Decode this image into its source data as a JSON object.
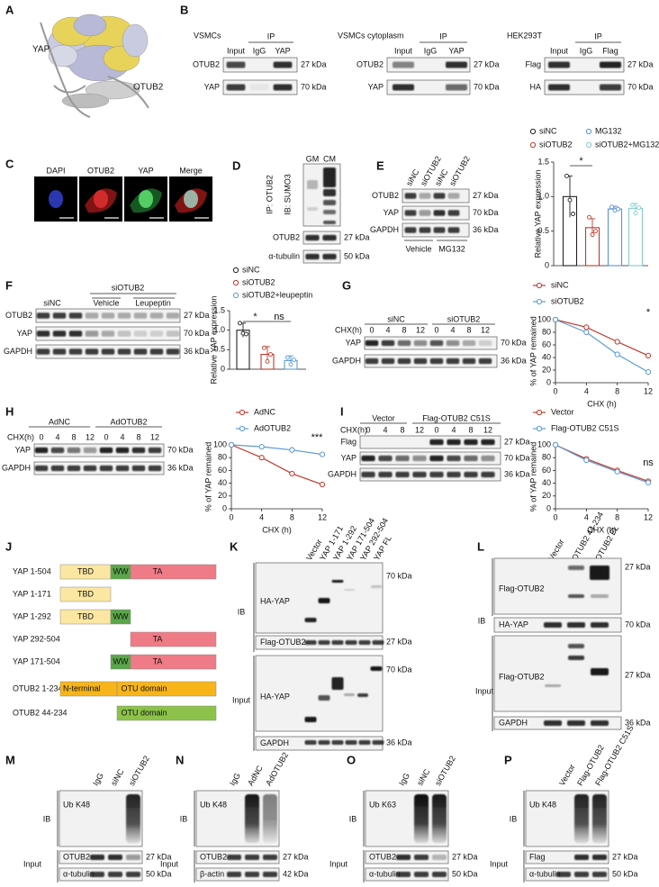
{
  "A": {
    "label": "A",
    "yap": "YAP",
    "otub2": "OTUB2"
  },
  "B": {
    "label": "B",
    "blots": [
      {
        "title": "VSMCs",
        "ip": "IP",
        "lanes": [
          "Input",
          "IgG",
          "YAP"
        ],
        "rows": [
          {
            "name": "OTUB2",
            "size": "27 kDa"
          },
          {
            "name": "YAP",
            "size": "70 kDa"
          }
        ]
      },
      {
        "title": "VSMCs cytoplasm",
        "ip": "IP",
        "lanes": [
          "Input",
          "IgG",
          "YAP"
        ],
        "rows": [
          {
            "name": "OTUB2",
            "size": "27 kDa"
          },
          {
            "name": "YAP",
            "size": "70 kDa"
          }
        ]
      },
      {
        "title": "HEK293T",
        "ip": "IP",
        "lanes": [
          "Input",
          "IgG",
          "Flag"
        ],
        "rows": [
          {
            "name": "Flag",
            "size": "27 kDa"
          },
          {
            "name": "HA",
            "size": "70 kDa"
          }
        ]
      }
    ]
  },
  "C": {
    "label": "C",
    "channels": [
      "DAPI",
      "OTUB2",
      "YAP",
      "Merge"
    ]
  },
  "D": {
    "label": "D",
    "lanes": [
      "GM",
      "CM"
    ],
    "ip": "IP: OTUB2",
    "ib": "IB: SUMO3",
    "rows": [
      {
        "name": "OTUB2",
        "size": "27 kDa"
      },
      {
        "name": "α-tubulin",
        "size": "50 kDa"
      }
    ]
  },
  "E": {
    "label": "E",
    "blot": {
      "lanes": [
        "siNC",
        "siOTUB2",
        "siNC",
        "siOTUB2"
      ],
      "rows": [
        {
          "name": "OTUB2",
          "size": "27 kDa"
        },
        {
          "name": "YAP",
          "size": "70 kDa"
        },
        {
          "name": "GAPDH",
          "size": "36 kDa"
        }
      ],
      "groups": [
        "Vehicle",
        "MG132"
      ]
    },
    "chart": {
      "type": "bar",
      "y_label": "Relative YAP expression",
      "categories": [
        "siNC",
        "siOTUB2",
        "MG132",
        "siOTUB2+MG132"
      ],
      "colors": [
        "#222222",
        "#c0392b",
        "#5b8fd6",
        "#86cccc"
      ],
      "values": [
        1.0,
        0.55,
        0.82,
        0.83
      ],
      "errors": [
        0.3,
        0.13,
        0.04,
        0.07
      ],
      "points": [
        [
          1.3,
          0.95,
          0.75
        ],
        [
          0.7,
          0.45,
          0.5
        ],
        [
          0.85,
          0.8,
          0.82
        ],
        [
          0.88,
          0.76,
          0.84
        ]
      ],
      "ylim": [
        0,
        1.5
      ],
      "yticks": [
        0,
        0.5,
        {
          "value": 1,
          "label": "1.0"
        },
        1.5
      ],
      "significance": "*"
    }
  },
  "F": {
    "label": "F",
    "blot": {
      "group": "siOTUB2",
      "sublabels": [
        "siNC",
        "Vehicle",
        "Leupeptin"
      ],
      "rows": [
        {
          "name": "OTUB2",
          "size": "27 kDa"
        },
        {
          "name": "YAP",
          "size": "70 kDa"
        },
        {
          "name": "GAPDH",
          "size": "36 kDa"
        }
      ]
    },
    "chart": {
      "type": "bar",
      "y_label": "Relative YAP expression",
      "categories": [
        "siNC",
        "siOTUB2",
        "siOTUB2+leupeptin"
      ],
      "colors": [
        "#222222",
        "#c0392b",
        "#5b9bd5"
      ],
      "values": [
        1.0,
        0.38,
        0.22
      ],
      "errors": [
        0.18,
        0.2,
        0.12
      ],
      "points": [
        [
          1.18,
          0.92,
          0.9
        ],
        [
          0.55,
          0.2,
          0.38
        ],
        [
          0.3,
          0.12,
          0.24
        ]
      ],
      "ylim": [
        0,
        1.5
      ],
      "yticks": [
        0,
        0.5,
        {
          "value": 1,
          "label": "1.0"
        },
        1.5
      ],
      "significance": [
        "*",
        "ns"
      ]
    }
  },
  "G": {
    "label": "G",
    "blot": {
      "chx": "CHX(h)",
      "groups": [
        "siNC",
        "siOTUB2"
      ],
      "lanes": [
        "0",
        "4",
        "8",
        "12",
        "0",
        "4",
        "8",
        "12"
      ],
      "rows": [
        {
          "name": "YAP",
          "size": "70 kDa"
        },
        {
          "name": "GAPDH",
          "size": "36 kDa"
        }
      ]
    },
    "chart": {
      "type": "line",
      "x_label": "CHX (h)",
      "y_label": "% of YAP remained",
      "x": [
        0,
        4,
        8,
        12
      ],
      "xlim": [
        0,
        12
      ],
      "xticks": [
        0,
        4,
        8,
        12
      ],
      "ylim": [
        0,
        100
      ],
      "yticks": [
        0,
        20,
        40,
        60,
        80,
        100
      ],
      "series": [
        {
          "name": "siNC",
          "color": "#c0392b",
          "values": [
            100,
            88,
            65,
            43
          ],
          "errors": [
            0,
            2,
            3,
            4
          ]
        },
        {
          "name": "siOTUB2",
          "color": "#5b9bd5",
          "values": [
            100,
            80,
            45,
            17
          ],
          "errors": [
            0,
            2,
            3,
            5
          ]
        }
      ],
      "significance": "*"
    }
  },
  "H": {
    "label": "H",
    "blot": {
      "chx": "CHX(h)",
      "groups": [
        "AdNC",
        "AdOTUB2"
      ],
      "lanes": [
        "0",
        "4",
        "8",
        "12",
        "0",
        "4",
        "8",
        "12"
      ],
      "rows": [
        {
          "name": "YAP",
          "size": "70 kDa"
        },
        {
          "name": "GAPDH",
          "size": "36 kDa"
        }
      ]
    },
    "chart": {
      "type": "line",
      "x_label": "CHX (h)",
      "y_label": "% of YAP remained",
      "x": [
        0,
        4,
        8,
        12
      ],
      "xlim": [
        0,
        12
      ],
      "xticks": [
        0,
        4,
        8,
        12
      ],
      "ylim": [
        0,
        100
      ],
      "yticks": [
        0,
        20,
        40,
        60,
        80,
        100
      ],
      "series": [
        {
          "name": "AdNC",
          "color": "#c0392b",
          "values": [
            100,
            80,
            55,
            38
          ],
          "errors": [
            0,
            2,
            4,
            4
          ]
        },
        {
          "name": "AdOTUB2",
          "color": "#5b9bd5",
          "values": [
            100,
            97,
            92,
            85
          ],
          "errors": [
            0,
            3,
            5,
            3
          ]
        }
      ],
      "significance": "***"
    }
  },
  "I": {
    "label": "I",
    "blot": {
      "chx": "CHX(h)",
      "groups": [
        "Vector",
        "Flag-OTUB2 C51S"
      ],
      "lanes": [
        "0",
        "4",
        "8",
        "12",
        "0",
        "4",
        "8",
        "12"
      ],
      "rows": [
        {
          "name": "Flag",
          "size": "27 kDa"
        },
        {
          "name": "YAP",
          "size": "70 kDa"
        },
        {
          "name": "GAPDH",
          "size": "36 kDa"
        }
      ]
    },
    "chart": {
      "type": "line",
      "x_label": "CHX (h)",
      "y_label": "% of YAP remained",
      "x": [
        0,
        4,
        8,
        12
      ],
      "xlim": [
        0,
        12
      ],
      "xticks": [
        0,
        4,
        8,
        12
      ],
      "ylim": [
        0,
        100
      ],
      "yticks": [
        0,
        20,
        40,
        60,
        80,
        100
      ],
      "series": [
        {
          "name": "Vector",
          "color": "#c0392b",
          "values": [
            100,
            78,
            60,
            43
          ],
          "errors": [
            0,
            3,
            3,
            4
          ]
        },
        {
          "name": "Flag-OTUB2 C51S",
          "color": "#5b9bd5",
          "values": [
            100,
            76,
            58,
            41
          ],
          "errors": [
            0,
            2,
            3,
            3
          ]
        }
      ],
      "significance": "ns"
    }
  },
  "J": {
    "label": "J",
    "constructs": [
      {
        "name": "YAP 1-504",
        "domains": [
          "TBD",
          "WW",
          "TA"
        ]
      },
      {
        "name": "YAP 1-171",
        "domains": [
          "TBD"
        ]
      },
      {
        "name": "YAP 1-292",
        "domains": [
          "TBD",
          "WW"
        ]
      },
      {
        "name": "YAP 292-504",
        "domains": [
          "TA"
        ]
      },
      {
        "name": "YAP 171-504",
        "domains": [
          "WW",
          "TA"
        ]
      },
      {
        "name": "OTUB2 1-234",
        "domains": [
          "N-terminal",
          "OTU domain"
        ]
      },
      {
        "name": "OTUB2 44-234",
        "domains": [
          "OTU domain"
        ]
      }
    ]
  },
  "K": {
    "label": "K",
    "lanes": [
      "Vector",
      "YAP 1-171",
      "YAP 1-292",
      "YAP 171-504",
      "YAP 292-504",
      "YAP FL"
    ],
    "ib": "IB",
    "input": "Input",
    "ib_rows": [
      {
        "name": "HA-YAP",
        "size": "70 kDa"
      },
      {
        "name": "Flag-OTUB2",
        "size": "27 kDa"
      }
    ],
    "input_rows": [
      {
        "name": "HA-YAP",
        "size": "70 kDa"
      },
      {
        "name": "GAPDH",
        "size": "36 kDa"
      }
    ]
  },
  "L": {
    "label": "L",
    "lanes": [
      "Vector",
      "OTUB2 44-234",
      "OTUB2 FL"
    ],
    "ib": "IB",
    "input": "Input",
    "ib_rows": [
      {
        "name": "Flag-OTUB2",
        "size": "27 kDa"
      },
      {
        "name": "HA-YAP",
        "size": "70 kDa"
      }
    ],
    "input_rows": [
      {
        "name": "Flag-OTUB2",
        "size": "27 kDa"
      },
      {
        "name": "GAPDH",
        "size": "36 kDa"
      }
    ]
  },
  "M": {
    "label": "M",
    "lanes": [
      "IgG",
      "siNC",
      "siOTUB2"
    ],
    "ib": "IB",
    "input": "Input",
    "ib_rows": [
      {
        "name": "Ub K48"
      }
    ],
    "input_rows": [
      {
        "name": "OTUB2",
        "size": "27 kDa"
      },
      {
        "name": "α-tubulin",
        "size": "50 kDa"
      }
    ]
  },
  "N": {
    "label": "N",
    "lanes": [
      "IgG",
      "AdNC",
      "AdOTUB2"
    ],
    "ib": "IB",
    "input": "Input",
    "ib_rows": [
      {
        "name": "Ub K48"
      }
    ],
    "input_rows": [
      {
        "name": "OTUB2",
        "size": "27 kDa"
      },
      {
        "name": "β-actin",
        "size": "42 kDa"
      }
    ]
  },
  "O": {
    "label": "O",
    "lanes": [
      "IgG",
      "siNC",
      "siOTUB2"
    ],
    "ib": "IB",
    "input": "Input",
    "ib_rows": [
      {
        "name": "Ub K63"
      }
    ],
    "input_rows": [
      {
        "name": "OTUB2",
        "size": "27 kDa"
      },
      {
        "name": "α-tubulin",
        "size": "50 kDa"
      }
    ]
  },
  "P": {
    "label": "P",
    "lanes": [
      "Vector",
      "Flag-OTUB2",
      "Flag-OTUB2 C51S"
    ],
    "ib": "IB",
    "input": "Input",
    "ib_rows": [
      {
        "name": "Ub K48"
      }
    ],
    "input_rows": [
      {
        "name": "Flag",
        "size": "27 kDa"
      },
      {
        "name": "α-tubulin",
        "size": "50 kDa"
      }
    ]
  }
}
